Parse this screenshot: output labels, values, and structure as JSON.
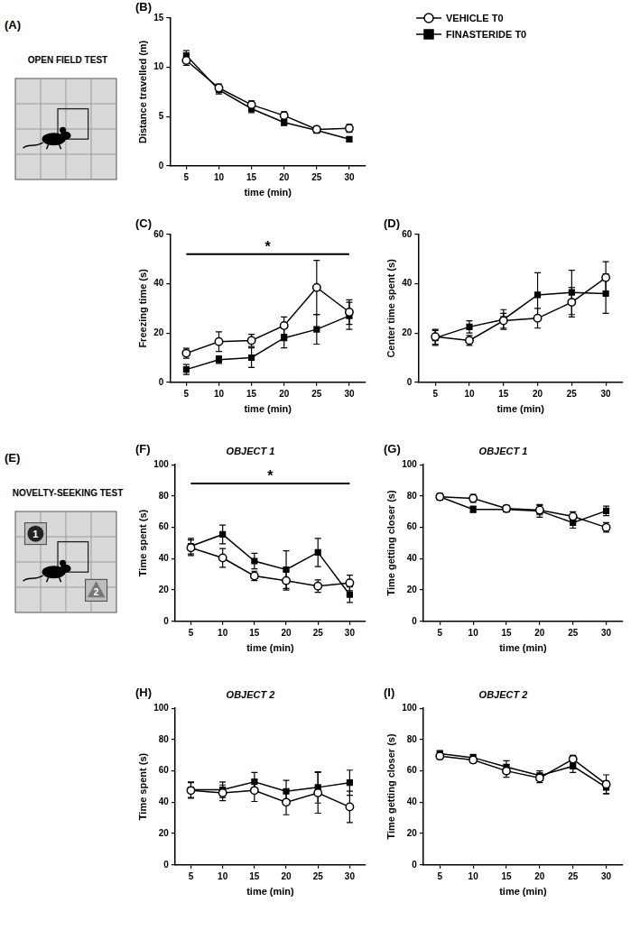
{
  "chart_data": [
    {
      "type": "line",
      "panel": "(B)",
      "x_label": "time (min)",
      "y_label": "Distance travelled (m)",
      "x": [
        5,
        10,
        15,
        20,
        25,
        30
      ],
      "xlim": [
        2.5,
        32.5
      ],
      "xticks": [
        5,
        10,
        15,
        20,
        25,
        30
      ],
      "ylim": [
        0,
        15
      ],
      "yticks": [
        0,
        5,
        10,
        15
      ],
      "grid": false,
      "legend": "right",
      "series": [
        {
          "name": "VEHICLE T0",
          "color": "#000000",
          "marker": "open_circle",
          "values": [
            10.7,
            7.9,
            6.2,
            5.1,
            3.7,
            3.8
          ],
          "errors": [
            0.5,
            0.4,
            0.4,
            0.4,
            0.3,
            0.4
          ]
        },
        {
          "name": "FINASTERIDE T0",
          "color": "#000000",
          "marker": "square",
          "values": [
            11.2,
            7.7,
            5.8,
            4.4,
            3.6,
            2.7
          ],
          "errors": [
            0.5,
            0.4,
            0.4,
            0.3,
            0.3,
            0.2
          ]
        }
      ]
    },
    {
      "type": "line",
      "panel": "(C)",
      "x_label": "time (min)",
      "y_label": "Freezing time (s)",
      "x": [
        5,
        10,
        15,
        20,
        25,
        30
      ],
      "xlim": [
        2.5,
        32.5
      ],
      "xticks": [
        5,
        10,
        15,
        20,
        25,
        30
      ],
      "ylim": [
        0,
        60
      ],
      "yticks": [
        0,
        20,
        40,
        60
      ],
      "grid": false,
      "annotations": [
        {
          "text": "*",
          "from": 5,
          "to": 30,
          "y": 52
        }
      ],
      "series": [
        {
          "name": "VEHICLE T0",
          "color": "#000000",
          "marker": "open_circle",
          "values": [
            11.8,
            16.5,
            17,
            23,
            38.5,
            28.5
          ],
          "errors": [
            2,
            4,
            2.5,
            3.5,
            11,
            5
          ]
        },
        {
          "name": "FINASTERIDE T0",
          "color": "#000000",
          "marker": "square",
          "values": [
            5.2,
            9.2,
            10,
            18,
            21.5,
            27
          ],
          "errors": [
            2,
            1.5,
            4,
            4,
            6,
            5.5
          ]
        }
      ]
    },
    {
      "type": "line",
      "panel": "(D)",
      "x_label": "time (min)",
      "y_label": "Center time spent (s)",
      "x": [
        5,
        10,
        15,
        20,
        25,
        30
      ],
      "xlim": [
        2.5,
        32.5
      ],
      "xticks": [
        5,
        10,
        15,
        20,
        25,
        30
      ],
      "ylim": [
        0,
        60
      ],
      "yticks": [
        0,
        20,
        40,
        60
      ],
      "grid": false,
      "series": [
        {
          "name": "VEHICLE T0",
          "color": "#000000",
          "marker": "open_circle",
          "values": [
            18.5,
            17,
            25,
            26,
            32.5,
            42.5
          ],
          "errors": [
            3,
            2,
            3,
            4,
            6,
            6.5
          ]
        },
        {
          "name": "FINASTERIDE T0",
          "color": "#000000",
          "marker": "square",
          "values": [
            18,
            22.5,
            25.5,
            35.5,
            36.5,
            36
          ],
          "errors": [
            3,
            2.5,
            4,
            9,
            9,
            8
          ]
        }
      ]
    },
    {
      "type": "line",
      "panel": "(F)",
      "title": "OBJECT 1",
      "x_label": "time (min)",
      "y_label": "Time spent (s)",
      "x": [
        5,
        10,
        15,
        20,
        25,
        30
      ],
      "xlim": [
        2.5,
        32.5
      ],
      "xticks": [
        5,
        10,
        15,
        20,
        25,
        30
      ],
      "ylim": [
        0,
        100
      ],
      "yticks": [
        0,
        20,
        40,
        60,
        80,
        100
      ],
      "grid": false,
      "annotations": [
        {
          "text": "*",
          "from": 5,
          "to": 30,
          "y": 88
        }
      ],
      "series": [
        {
          "name": "VEHICLE T0",
          "color": "#000000",
          "marker": "open_circle",
          "values": [
            47,
            40.5,
            29,
            26,
            22.5,
            24.5
          ],
          "errors": [
            5,
            6,
            3,
            6,
            4,
            5
          ]
        },
        {
          "name": "FINASTERIDE T0",
          "color": "#000000",
          "marker": "square",
          "values": [
            48,
            55.5,
            38.5,
            33,
            44,
            17
          ],
          "errors": [
            5,
            6,
            5,
            12,
            9,
            5
          ]
        }
      ]
    },
    {
      "type": "line",
      "panel": "(G)",
      "title": "OBJECT 1",
      "x_label": "time (min)",
      "y_label": "Time getting closer (s)",
      "x": [
        5,
        10,
        15,
        20,
        25,
        30
      ],
      "xlim": [
        2.5,
        32.5
      ],
      "xticks": [
        5,
        10,
        15,
        20,
        25,
        30
      ],
      "ylim": [
        0,
        100
      ],
      "yticks": [
        0,
        20,
        40,
        60,
        80,
        100
      ],
      "grid": false,
      "series": [
        {
          "name": "VEHICLE T0",
          "color": "#000000",
          "marker": "open_circle",
          "values": [
            79.5,
            78.5,
            72,
            71,
            67,
            60
          ],
          "errors": [
            2,
            2.5,
            2,
            3,
            3,
            3
          ]
        },
        {
          "name": "FINASTERIDE T0",
          "color": "#000000",
          "marker": "square",
          "values": [
            79.5,
            71.5,
            71.5,
            70.5,
            63,
            70.5
          ],
          "errors": [
            2,
            2,
            1.5,
            4,
            3.5,
            3
          ]
        }
      ]
    },
    {
      "type": "line",
      "panel": "(H)",
      "title": "OBJECT 2",
      "x_label": "time (min)",
      "y_label": "Time spent (s)",
      "x": [
        5,
        10,
        15,
        20,
        25,
        30
      ],
      "xlim": [
        2.5,
        32.5
      ],
      "xticks": [
        5,
        10,
        15,
        20,
        25,
        30
      ],
      "ylim": [
        0,
        100
      ],
      "yticks": [
        0,
        20,
        40,
        60,
        80,
        100
      ],
      "grid": false,
      "series": [
        {
          "name": "VEHICLE T0",
          "color": "#000000",
          "marker": "open_circle",
          "values": [
            47.5,
            46,
            47.5,
            40,
            46,
            37
          ],
          "errors": [
            5,
            5,
            7,
            8,
            13,
            10
          ]
        },
        {
          "name": "FINASTERIDE T0",
          "color": "#000000",
          "marker": "square",
          "values": [
            48,
            48,
            53,
            47,
            49.5,
            52.5
          ],
          "errors": [
            5,
            5,
            6,
            7,
            10,
            8
          ]
        }
      ]
    },
    {
      "type": "line",
      "panel": "(I)",
      "title": "OBJECT 2",
      "x_label": "time (min)",
      "y_label": "Time getting closer (s)",
      "x": [
        5,
        10,
        15,
        20,
        25,
        30
      ],
      "xlim": [
        2.5,
        32.5
      ],
      "xticks": [
        5,
        10,
        15,
        20,
        25,
        30
      ],
      "ylim": [
        0,
        100
      ],
      "yticks": [
        0,
        20,
        40,
        60,
        80,
        100
      ],
      "grid": false,
      "series": [
        {
          "name": "VEHICLE T0",
          "color": "#000000",
          "marker": "open_circle",
          "values": [
            69.5,
            67,
            60,
            55.5,
            67.5,
            51.5
          ],
          "errors": [
            2,
            2,
            4,
            3,
            2.5,
            6
          ]
        },
        {
          "name": "FINASTERIDE T0",
          "color": "#000000",
          "marker": "square",
          "values": [
            71,
            68.5,
            62.5,
            57,
            63,
            49.5
          ],
          "errors": [
            2,
            2,
            4,
            3,
            4,
            4
          ]
        }
      ]
    }
  ],
  "diagrams": [
    {
      "panel": "(A)",
      "title": "OPEN FIELD TEST"
    },
    {
      "panel": "(E)",
      "title": "NOVELTY-SEEKING TEST",
      "objects": [
        "1",
        "2"
      ]
    }
  ]
}
